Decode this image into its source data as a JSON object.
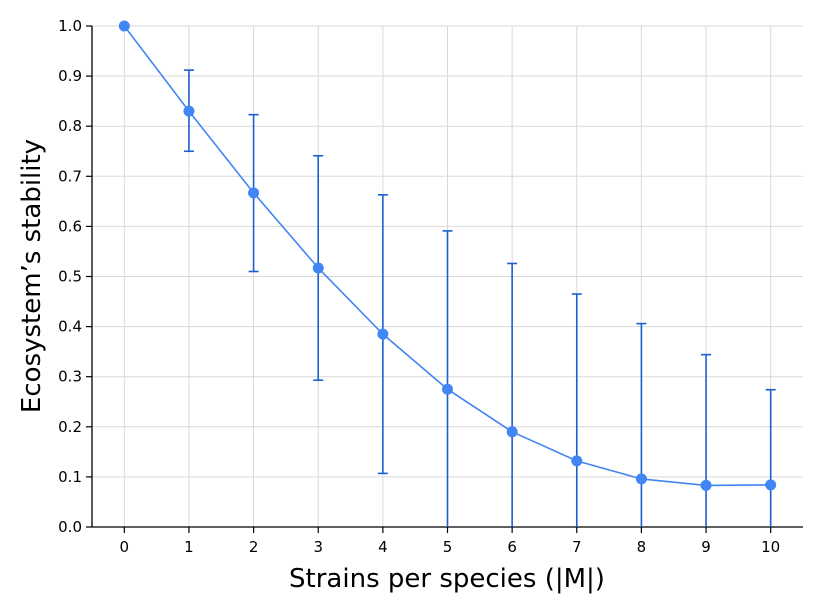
{
  "chart_data": {
    "type": "line",
    "title": "",
    "xlabel": "Strains per species (|M|)",
    "ylabel": "Ecosystem’s stability",
    "x": [
      0,
      1,
      2,
      3,
      4,
      5,
      6,
      7,
      8,
      9,
      10
    ],
    "series": [
      {
        "name": "stability",
        "values": [
          1.0,
          0.83,
          0.667,
          0.517,
          0.385,
          0.275,
          0.19,
          0.132,
          0.096,
          0.083,
          0.084
        ],
        "err_upper": [
          1.0,
          0.912,
          0.823,
          0.741,
          0.663,
          0.591,
          0.526,
          0.465,
          0.406,
          0.344,
          0.274
        ],
        "err_lower": [
          1.0,
          0.75,
          0.51,
          0.293,
          0.107,
          0.0,
          0.0,
          0.0,
          0.0,
          0.0,
          0.0
        ],
        "color": "#4285f4",
        "errorbar_color": "#1a5fd0"
      }
    ],
    "xticks": [
      "0",
      "1",
      "2",
      "3",
      "4",
      "5",
      "6",
      "7",
      "8",
      "9",
      "10"
    ],
    "yticks": [
      "0.0",
      "0.1",
      "0.2",
      "0.3",
      "0.4",
      "0.5",
      "0.6",
      "0.7",
      "0.8",
      "0.9",
      "1.0"
    ],
    "xlim": [
      -0.5,
      10.5
    ],
    "ylim": [
      0.0,
      1.0
    ],
    "grid": true
  }
}
